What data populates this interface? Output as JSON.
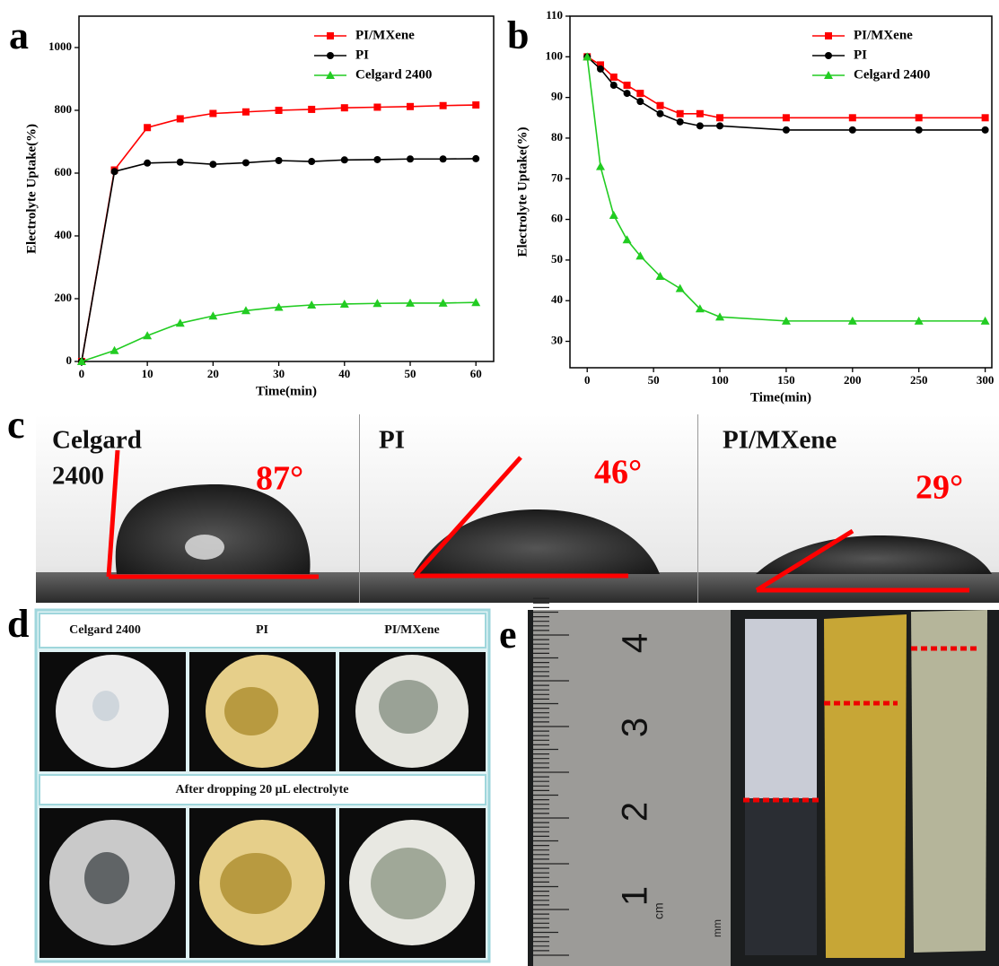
{
  "chart_data": [
    {
      "type": "line",
      "y_label": "Electrolyte Uptake(%)",
      "x_label": "Time(min)",
      "x": [
        0,
        5,
        10,
        15,
        20,
        25,
        30,
        35,
        40,
        45,
        50,
        55,
        60
      ],
      "series": [
        {
          "name": "PI/MXene",
          "color": "#ff0000",
          "marker": "square",
          "values": [
            0,
            610,
            745,
            773,
            790,
            795,
            800,
            803,
            808,
            810,
            812,
            815,
            817
          ]
        },
        {
          "name": "PI",
          "color": "#000000",
          "marker": "circle",
          "values": [
            0,
            605,
            632,
            635,
            628,
            633,
            640,
            637,
            642,
            643,
            645,
            645,
            646
          ]
        },
        {
          "name": "Celgard 2400",
          "color": "#22cc22",
          "marker": "triangle",
          "values": [
            0,
            35,
            82,
            122,
            145,
            162,
            173,
            180,
            183,
            185,
            186,
            186,
            188
          ]
        }
      ],
      "xlim": [
        -0.4,
        62.7
      ],
      "ylim": [
        0,
        1100
      ],
      "xticks": [
        0,
        10,
        20,
        30,
        40,
        50,
        60
      ],
      "yticks": [
        0,
        200,
        400,
        600,
        800,
        1000
      ],
      "legend": "upper right",
      "grid": false
    },
    {
      "type": "line",
      "y_label": "Electrolyte Uptake(%)",
      "x_label": "Time(min)",
      "x": [
        0,
        10,
        20,
        30,
        40,
        55,
        70,
        85,
        100,
        150,
        200,
        250,
        300
      ],
      "series": [
        {
          "name": "PI/MXene",
          "color": "#ff0000",
          "marker": "square",
          "values": [
            100,
            98,
            95,
            93,
            91,
            88,
            86,
            86,
            85,
            85,
            85,
            85,
            85
          ]
        },
        {
          "name": "PI",
          "color": "#000000",
          "marker": "circle",
          "values": [
            100,
            97,
            93,
            91,
            89,
            86,
            84,
            83,
            83,
            82,
            82,
            82,
            82
          ]
        },
        {
          "name": "Celgard 2400",
          "color": "#22cc22",
          "marker": "triangle",
          "values": [
            100,
            73,
            61,
            55,
            51,
            46,
            43,
            38,
            36,
            35,
            35,
            35,
            35
          ]
        }
      ],
      "xlim": [
        -13,
        305
      ],
      "ylim": [
        23.5,
        110
      ],
      "xticks": [
        0,
        50,
        100,
        150,
        200,
        250,
        300
      ],
      "yticks": [
        30,
        40,
        50,
        60,
        70,
        80,
        90,
        100,
        110
      ],
      "legend": "upper right",
      "grid": false
    }
  ],
  "panel_labels": [
    "a",
    "b",
    "c",
    "d",
    "e"
  ],
  "contact_angle": [
    {
      "name_lines": [
        "Celgard",
        "2400"
      ],
      "angle": "87°"
    },
    {
      "name_lines": [
        "PI"
      ],
      "angle": "46°"
    },
    {
      "name_lines": [
        "PI/MXene"
      ],
      "angle": "29°"
    }
  ],
  "wetting": {
    "headers": [
      "Celgard 2400",
      "PI",
      "PI/MXene"
    ],
    "banner": "After dropping 20 μL electrolyte"
  },
  "ruler": {
    "numbers": [
      "4",
      "3",
      "2",
      "1"
    ],
    "units": [
      "cm",
      "mm"
    ]
  }
}
